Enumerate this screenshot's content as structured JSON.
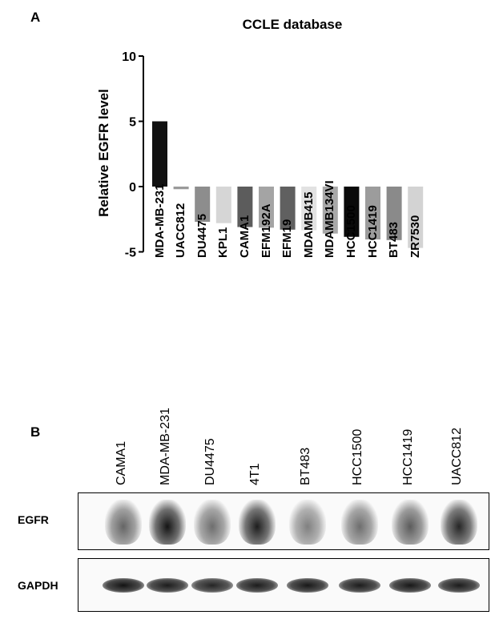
{
  "figure": {
    "panel_a_label": "A",
    "panel_b_label": "B"
  },
  "chart_data": {
    "type": "bar",
    "title": "CCLE database",
    "ylabel": "Relative EGFR level",
    "xlabel": "",
    "ylim": [
      -5,
      10
    ],
    "yticks": [
      -5,
      0,
      5,
      10
    ],
    "categories": [
      "MDA-MB-231",
      "UACC812",
      "DU4475",
      "KPL1",
      "CAMA1",
      "EFM192A",
      "EFM19",
      "MDAMB415",
      "MDAMB134VI",
      "HCC1500",
      "HCC1419",
      "BT483",
      "ZR7530"
    ],
    "values": [
      5.0,
      -0.2,
      -2.7,
      -2.8,
      -3.1,
      -3.15,
      -3.3,
      -3.35,
      -3.6,
      -3.85,
      -4.05,
      -4.1,
      -4.7
    ],
    "colors": [
      "#111111",
      "#9a9a9a",
      "#8d8d8d",
      "#d6d6d6",
      "#5c5c5c",
      "#a4a4a4",
      "#606060",
      "#e2e2e2",
      "#a8a8a8",
      "#0a0a0a",
      "#9c9c9c",
      "#8a8a8a",
      "#d3d3d3"
    ],
    "grid": false,
    "legend": "none"
  },
  "blot": {
    "lanes": [
      "CAMA1",
      "MDA-MB-231",
      "DU4475",
      "4T1",
      "BT483",
      "HCC1500",
      "HCC1419",
      "UACC812"
    ],
    "rows": [
      {
        "name": "EGFR",
        "intensity": [
          0.55,
          1.0,
          0.5,
          0.95,
          0.4,
          0.5,
          0.6,
          0.9
        ]
      },
      {
        "name": "GAPDH",
        "intensity": [
          0.95,
          0.9,
          0.85,
          0.9,
          0.92,
          0.9,
          0.92,
          0.9
        ]
      }
    ]
  }
}
